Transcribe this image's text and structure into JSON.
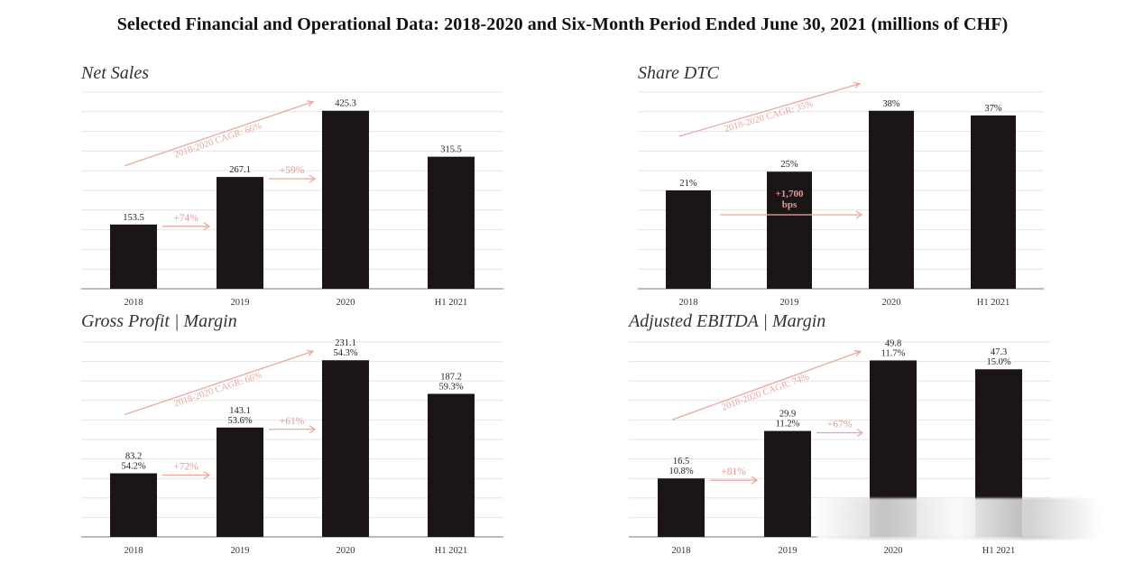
{
  "page": {
    "title": "Selected Financial and Operational Data: 2018-2020 and Six-Month Period Ended June 30, 2021 (millions of CHF)"
  },
  "colors": {
    "bar": "#1b1516",
    "accent": "#e39a92"
  },
  "chart_data": [
    {
      "id": "net-sales",
      "type": "bar",
      "title": "Net Sales",
      "categories": [
        "2018",
        "2019",
        "2020",
        "H1 2021"
      ],
      "values": [
        153.5,
        267.1,
        425.3,
        315.5
      ],
      "value_labels": [
        [
          "153.5"
        ],
        [
          "267.1"
        ],
        [
          "425.3"
        ],
        [
          "315.5"
        ]
      ],
      "ylim": [
        0,
        470
      ],
      "grid": true,
      "growth_labels": [
        {
          "from": 0,
          "to": 1,
          "text": "+74%"
        },
        {
          "from": 1,
          "to": 2,
          "text": "+59%"
        }
      ],
      "cagr_label": "2018-2020 CAGR: 66%"
    },
    {
      "id": "share-dtc",
      "type": "bar",
      "title": "Share DTC",
      "categories": [
        "2018",
        "2019",
        "2020",
        "H1 2021"
      ],
      "values": [
        21,
        25,
        38,
        37
      ],
      "value_labels": [
        [
          "21%"
        ],
        [
          "25%"
        ],
        [
          "38%"
        ],
        [
          "37%"
        ]
      ],
      "ylim": [
        0,
        42
      ],
      "grid": true,
      "inbar_label": [
        "+1,700",
        "bps"
      ],
      "cagr_label": "2018-2020 CAGR: 35%"
    },
    {
      "id": "gross-profit",
      "type": "bar",
      "title": "Gross Profit | Margin",
      "categories": [
        "2018",
        "2019",
        "2020",
        "H1 2021"
      ],
      "values": [
        83.2,
        143.1,
        231.1,
        187.2
      ],
      "margins": [
        "54.2%",
        "53.6%",
        "54.3%",
        "59.3%"
      ],
      "value_labels": [
        [
          "83.2",
          "54.2%"
        ],
        [
          "143.1",
          "53.6%"
        ],
        [
          "231.1",
          "54.3%"
        ],
        [
          "187.2",
          "59.3%"
        ]
      ],
      "ylim": [
        0,
        255
      ],
      "grid": true,
      "growth_labels": [
        {
          "from": 0,
          "to": 1,
          "text": "+72%"
        },
        {
          "from": 1,
          "to": 2,
          "text": "+61%"
        }
      ],
      "cagr_label": "2018-2020 CAGR: 66%"
    },
    {
      "id": "adjusted-ebitda",
      "type": "bar",
      "title": "Adjusted EBITDA | Margin",
      "categories": [
        "2018",
        "2019",
        "2020",
        "H1 2021"
      ],
      "values": [
        16.5,
        29.9,
        49.8,
        47.3
      ],
      "margins": [
        "10.8%",
        "11.2%",
        "11.7%",
        "15.0%"
      ],
      "value_labels": [
        [
          "16.5",
          "10.8%"
        ],
        [
          "29.9",
          "11.2%"
        ],
        [
          "49.8",
          "11.7%"
        ],
        [
          "47.3",
          "15.0%"
        ]
      ],
      "ylim": [
        0,
        55
      ],
      "grid": true,
      "growth_labels": [
        {
          "from": 0,
          "to": 1,
          "text": "+81%"
        },
        {
          "from": 1,
          "to": 2,
          "text": "+67%"
        }
      ],
      "cagr_label": "2018-2020 CAGR: 74%"
    }
  ]
}
